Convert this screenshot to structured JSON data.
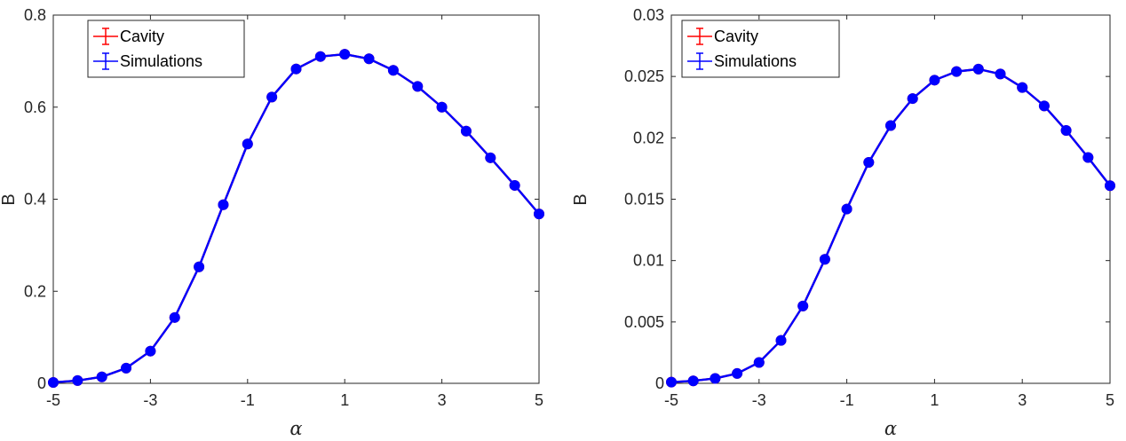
{
  "chart_data": [
    {
      "type": "line",
      "xlabel": "α",
      "ylabel": "B",
      "xlim": [
        -5,
        5
      ],
      "ylim": [
        0,
        0.8
      ],
      "xticks": [
        -5,
        -3,
        -1,
        1,
        3,
        5
      ],
      "yticks": [
        0,
        0.2,
        0.4,
        0.6,
        0.8
      ],
      "ytick_labels": [
        "0",
        "0.2",
        "0.4",
        "0.6",
        "0.8"
      ],
      "grid": false,
      "legend_position": "top-left",
      "series": [
        {
          "name": "Cavity",
          "color": "#ff0000",
          "x": [
            -5,
            -4.5,
            -4,
            -3.5,
            -3,
            -2.5,
            -2,
            -1.5,
            -1,
            -0.5,
            0,
            0.5,
            1,
            1.5,
            2,
            2.5,
            3,
            3.5,
            4,
            4.5,
            5
          ],
          "y": [
            0.002,
            0.006,
            0.014,
            0.033,
            0.07,
            0.143,
            0.253,
            0.388,
            0.52,
            0.622,
            0.683,
            0.71,
            0.715,
            0.705,
            0.68,
            0.645,
            0.6,
            0.548,
            0.49,
            0.43,
            0.368
          ]
        },
        {
          "name": "Simulations",
          "color": "#0000ff",
          "x": [
            -5,
            -4.5,
            -4,
            -3.5,
            -3,
            -2.5,
            -2,
            -1.5,
            -1,
            -0.5,
            0,
            0.5,
            1,
            1.5,
            2,
            2.5,
            3,
            3.5,
            4,
            4.5,
            5
          ],
          "y": [
            0.002,
            0.006,
            0.014,
            0.033,
            0.07,
            0.143,
            0.253,
            0.388,
            0.52,
            0.622,
            0.683,
            0.71,
            0.715,
            0.705,
            0.68,
            0.645,
            0.6,
            0.548,
            0.49,
            0.43,
            0.368
          ]
        }
      ]
    },
    {
      "type": "line",
      "xlabel": "α",
      "ylabel": "B",
      "xlim": [
        -5,
        5
      ],
      "ylim": [
        0,
        0.03
      ],
      "xticks": [
        -5,
        -3,
        -1,
        1,
        3,
        5
      ],
      "yticks": [
        0,
        0.005,
        0.01,
        0.015,
        0.02,
        0.025,
        0.03
      ],
      "ytick_labels": [
        "0",
        "0.005",
        "0.01",
        "0.015",
        "0.02",
        "0.025",
        "0.03"
      ],
      "grid": false,
      "legend_position": "top-left",
      "series": [
        {
          "name": "Cavity",
          "color": "#ff0000",
          "x": [
            -5,
            -4.5,
            -4,
            -3.5,
            -3,
            -2.5,
            -2,
            -1.5,
            -1,
            -0.5,
            0,
            0.5,
            1,
            1.5,
            2,
            2.5,
            3,
            3.5,
            4,
            4.5,
            5
          ],
          "y": [
            0.0001,
            0.0002,
            0.0004,
            0.0008,
            0.0017,
            0.0035,
            0.0063,
            0.0101,
            0.0142,
            0.018,
            0.021,
            0.0232,
            0.0247,
            0.0254,
            0.0256,
            0.0252,
            0.0241,
            0.0226,
            0.0206,
            0.0184,
            0.0161
          ]
        },
        {
          "name": "Simulations",
          "color": "#0000ff",
          "x": [
            -5,
            -4.5,
            -4,
            -3.5,
            -3,
            -2.5,
            -2,
            -1.5,
            -1,
            -0.5,
            0,
            0.5,
            1,
            1.5,
            2,
            2.5,
            3,
            3.5,
            4,
            4.5,
            5
          ],
          "y": [
            0.0001,
            0.0002,
            0.0004,
            0.0008,
            0.0017,
            0.0035,
            0.0063,
            0.0101,
            0.0142,
            0.018,
            0.021,
            0.0232,
            0.0247,
            0.0254,
            0.0256,
            0.0252,
            0.0241,
            0.0226,
            0.0206,
            0.0184,
            0.0161
          ]
        }
      ]
    }
  ]
}
